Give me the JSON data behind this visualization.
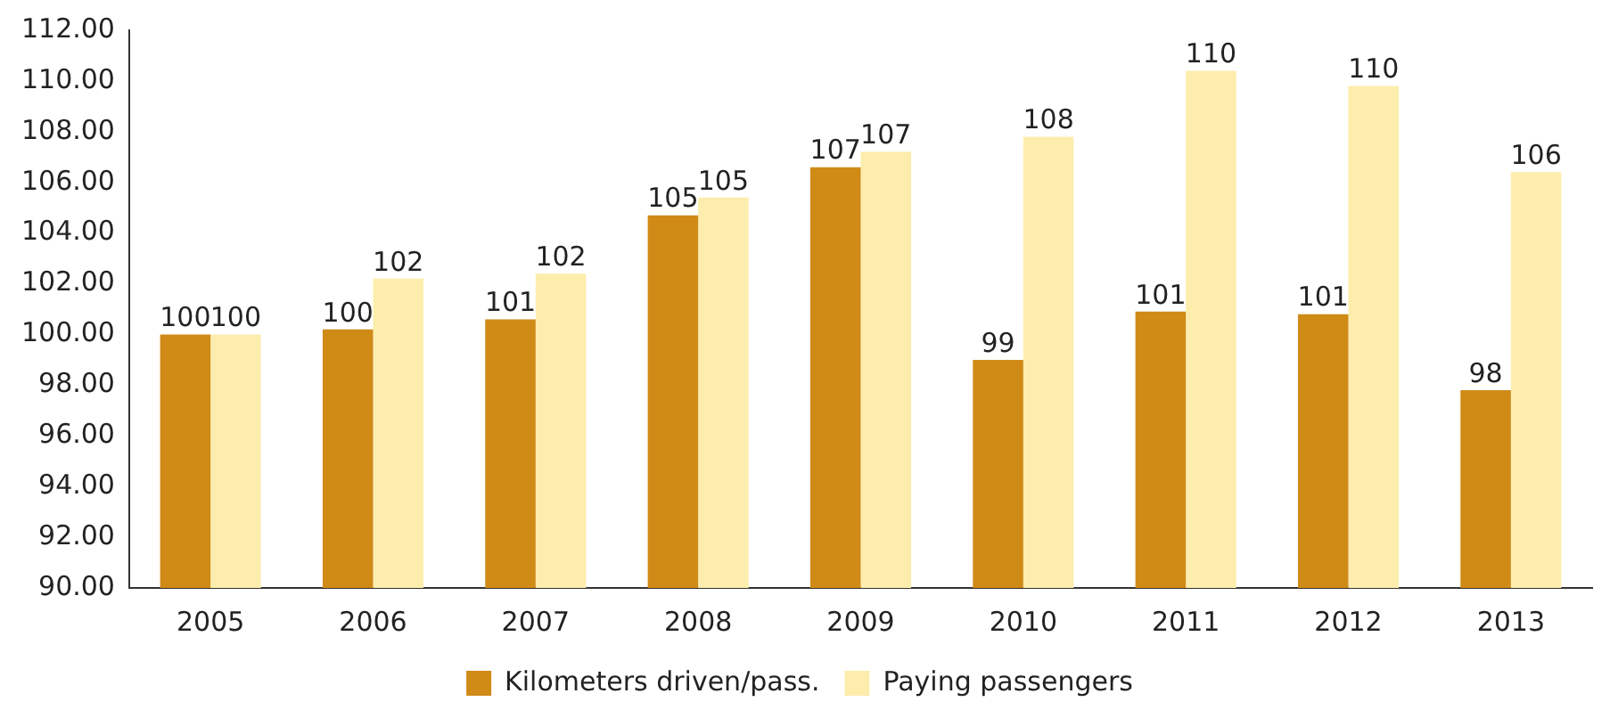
{
  "chart_data": {
    "type": "bar",
    "categories": [
      "2005",
      "2006",
      "2007",
      "2008",
      "2009",
      "2010",
      "2011",
      "2012",
      "2013"
    ],
    "series": [
      {
        "name": "Kilometers driven/pass.",
        "color": "#d08a16",
        "values": [
          100.0,
          100.2,
          100.6,
          104.7,
          106.6,
          99.0,
          100.9,
          100.8,
          97.8
        ],
        "value_labels": [
          "100",
          "100",
          "101",
          "105",
          "107",
          "99",
          "101",
          "101",
          "98"
        ]
      },
      {
        "name": "Paying passengers",
        "color": "#fdedac",
        "values": [
          100.0,
          102.2,
          102.4,
          105.4,
          107.2,
          107.8,
          110.4,
          109.8,
          106.4
        ],
        "value_labels": [
          "100",
          "102",
          "102",
          "105",
          "107",
          "108",
          "110",
          "110",
          "106"
        ]
      }
    ],
    "ylim": [
      90,
      112
    ],
    "yticks": [
      {
        "value": 90,
        "label": "90.00"
      },
      {
        "value": 92,
        "label": "92.00"
      },
      {
        "value": 94,
        "label": "94.00"
      },
      {
        "value": 96,
        "label": "96.00"
      },
      {
        "value": 98,
        "label": "98.00"
      },
      {
        "value": 100,
        "label": "100.00"
      },
      {
        "value": 102,
        "label": "102.00"
      },
      {
        "value": 104,
        "label": "104.00"
      },
      {
        "value": 106,
        "label": "106.00"
      },
      {
        "value": 108,
        "label": "108.00"
      },
      {
        "value": 110,
        "label": "110.00"
      },
      {
        "value": 112,
        "label": "112.00"
      }
    ],
    "grid": false,
    "legend": "bottom"
  }
}
